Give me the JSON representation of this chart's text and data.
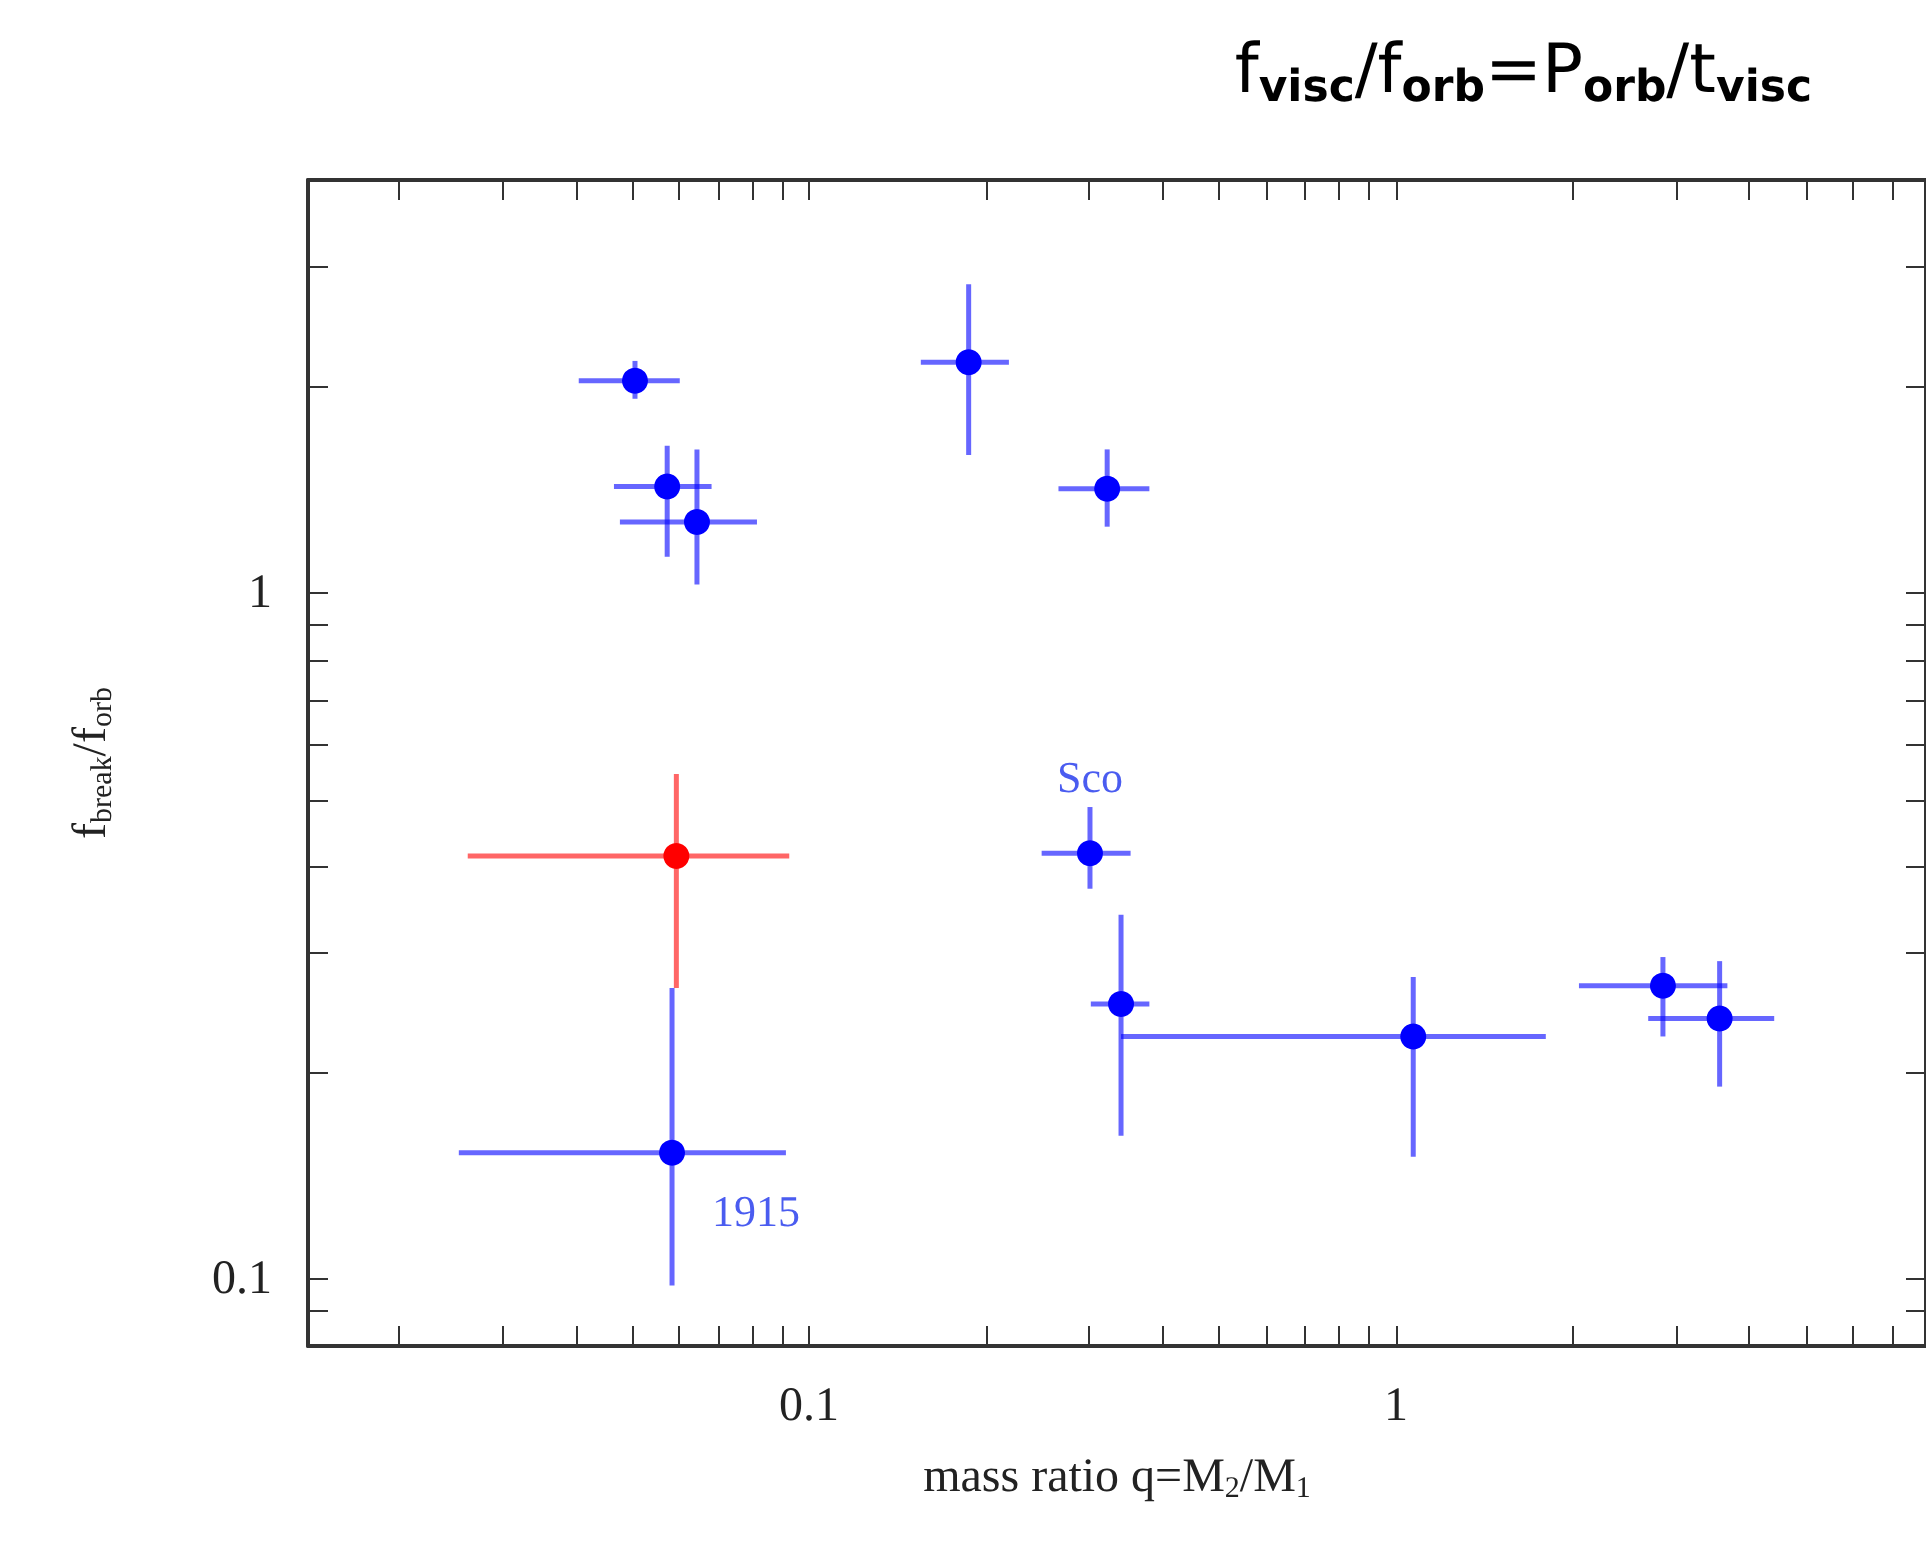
{
  "chart_data": {
    "type": "scatter",
    "title": "f$_{visc}$/f$_{orb}$=P$_{orb}$/t$_{visc}$",
    "xlabel": "mass ratio q=M$_{2}$/M$_{1}$",
    "ylabel": "f$_{break}$/f$_{orb}$",
    "log": "xy",
    "xlim": [
      0.014,
      8
    ],
    "ylim": [
      0.08,
      4
    ],
    "xticks": [
      {
        "value": 0.02,
        "label": null
      },
      {
        "value": 0.03,
        "label": null
      },
      {
        "value": 0.04,
        "label": null
      },
      {
        "value": 0.05,
        "label": null
      },
      {
        "value": 0.06,
        "label": null
      },
      {
        "value": 0.07,
        "label": null
      },
      {
        "value": 0.08,
        "label": null
      },
      {
        "value": 0.09,
        "label": null
      },
      0.1,
      {
        "value": 0.2,
        "label": null
      },
      {
        "value": 0.3,
        "label": null
      },
      {
        "value": 0.4,
        "label": null
      },
      {
        "value": 0.5,
        "label": null
      },
      {
        "value": 0.6,
        "label": null
      },
      {
        "value": 0.7,
        "label": null
      },
      {
        "value": 0.8,
        "label": null
      },
      {
        "value": 0.9,
        "label": null
      },
      1,
      {
        "value": 2,
        "label": null
      },
      {
        "value": 3,
        "label": null
      },
      {
        "value": 4,
        "label": null
      },
      {
        "value": 5,
        "label": null
      },
      {
        "value": 6,
        "label": null
      },
      {
        "value": 7,
        "label": null
      }
    ],
    "yticks": [
      {
        "value": 0.09,
        "label": null
      },
      0.1,
      {
        "value": 0.2,
        "label": null
      },
      {
        "value": 0.3,
        "label": null
      },
      {
        "value": 0.4,
        "label": null
      },
      {
        "value": 0.5,
        "label": null
      },
      {
        "value": 0.6,
        "label": null
      },
      {
        "value": 0.7,
        "label": null
      },
      {
        "value": 0.8,
        "label": null
      },
      {
        "value": 0.9,
        "label": null
      },
      1,
      {
        "value": 2,
        "label": null
      },
      {
        "value": 3,
        "label": null
      }
    ],
    "grid": false,
    "marker": "circle",
    "series": [
      {
        "color": "#0000ff",
        "x": [
          0.0505,
          0.0573,
          0.0644,
          0.187,
          0.322,
          0.301,
          0.34,
          1.07,
          2.85,
          3.56,
          0.0584
        ],
        "values": [
          2.04,
          1.43,
          1.27,
          2.17,
          1.42,
          0.418,
          0.252,
          0.226,
          0.268,
          0.24,
          0.153
        ],
        "errors": [
          [
            1.92,
            2.18
          ],
          [
            1.13,
            1.64
          ],
          [
            1.03,
            1.62
          ],
          [
            1.59,
            2.82
          ],
          [
            1.25,
            1.62
          ],
          [
            0.371,
            0.488
          ],
          [
            0.162,
            0.34
          ],
          [
            0.151,
            0.276
          ],
          [
            0.226,
            0.295
          ],
          [
            0.191,
            0.291
          ],
          [
            0.098,
            0.266
          ]
        ],
        "xerrors": [
          [
            0.0405,
            0.0602
          ],
          [
            0.0465,
            0.0682
          ],
          [
            0.0476,
            0.0815
          ],
          [
            0.155,
            0.219
          ],
          [
            0.266,
            0.38
          ],
          [
            0.249,
            0.353
          ],
          [
            0.302,
            0.38
          ],
          [
            0.34,
            1.8
          ],
          [
            2.05,
            3.67
          ],
          [
            2.69,
            4.41
          ],
          [
            0.0253,
            0.0913
          ]
        ]
      },
      {
        "color": "#ff0000",
        "x": [
          0.0594
        ],
        "values": [
          0.414
        ],
        "errors": [
          [
            0.266,
            0.545
          ]
        ],
        "xerrors": [
          [
            0.0262,
            0.0925
          ]
        ]
      }
    ],
    "annotations": [
      {
        "text": "Sco",
        "x": 0.301,
        "y": 0.418
      },
      {
        "text": "1915",
        "x": 0.0584,
        "y": 0.153
      }
    ]
  }
}
